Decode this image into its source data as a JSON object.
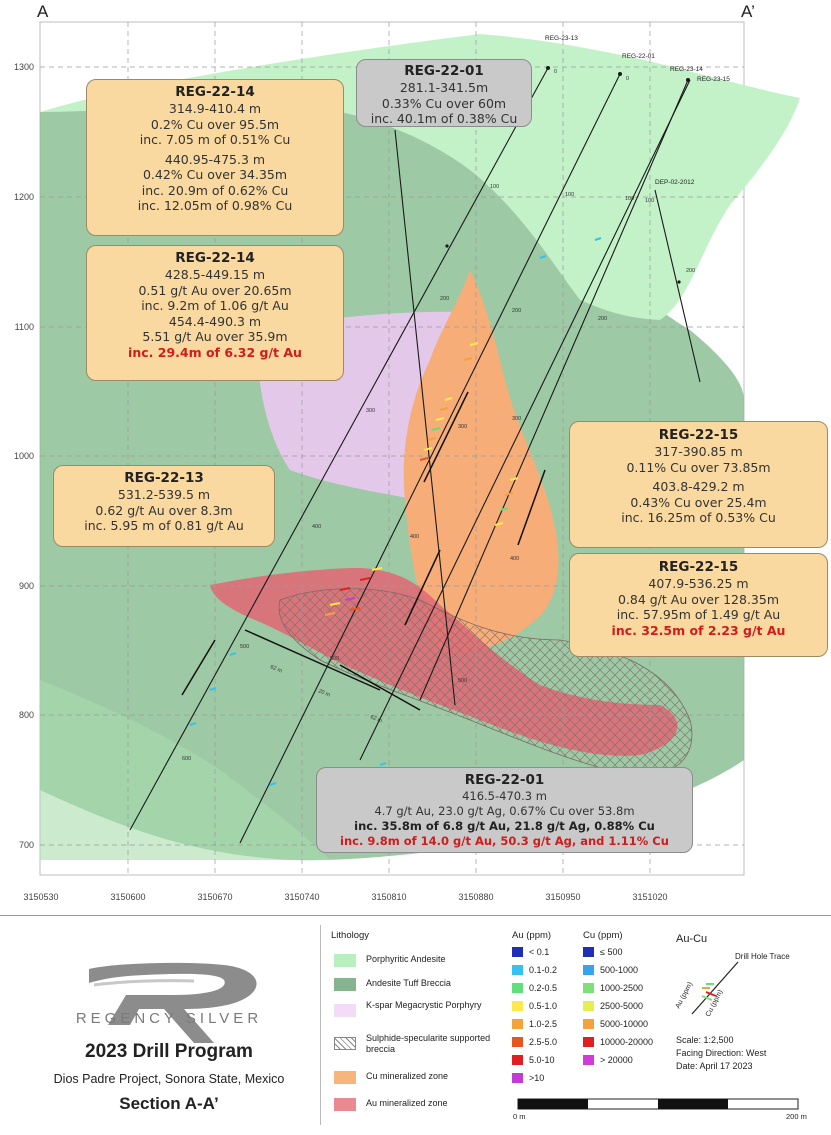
{
  "section": {
    "left_label": "A",
    "right_label": "A’"
  },
  "y_axis": {
    "ticks": [
      "1300",
      "1200",
      "1100",
      "1000",
      "900",
      "800",
      "700"
    ]
  },
  "x_axis": {
    "ticks": [
      "3150530",
      "3150600",
      "3150670",
      "3150740",
      "3150810",
      "3150880",
      "3150950",
      "3151020"
    ]
  },
  "drill_holes": {
    "top_labels": [
      "REG-23-13",
      "REG-22-01",
      "REG-23-14",
      "REG-23-15"
    ],
    "dep_label": "DEP-02-2012",
    "depth_marks": [
      "100",
      "100",
      "100",
      "100",
      "200",
      "200",
      "200",
      "200",
      "300",
      "300",
      "300",
      "400",
      "400",
      "400",
      "500",
      "500",
      "500",
      "600",
      "0",
      "0"
    ],
    "interval_marks": [
      "62 m",
      "20 m",
      "62 m"
    ]
  },
  "callouts": {
    "reg2214_cu": {
      "title": "REG-22-14",
      "lines": [
        "314.9-410.4 m",
        "0.2% Cu over 95.5m",
        "inc. 7.05 m of 0.51% Cu",
        "440.95-475.3 m",
        "0.42% Cu over 34.35m",
        "inc. 20.9m of 0.62% Cu",
        "inc. 12.05m of 0.98% Cu"
      ]
    },
    "reg2201_cu": {
      "title": "REG-22-01",
      "lines": [
        "281.1-341.5m",
        "0.33% Cu over 60m",
        "inc. 40.1m of 0.38% Cu"
      ]
    },
    "reg2214_au": {
      "title": "REG-22-14",
      "lines": [
        "428.5-449.15 m",
        "0.51 g/t Au over 20.65m",
        "inc. 9.2m of 1.06 g/t Au",
        "454.4-490.3 m",
        "5.51 g/t Au over 35.9m"
      ],
      "highlight": "inc. 29.4m of 6.32 g/t Au"
    },
    "reg2213_au": {
      "title": "REG-22-13",
      "lines": [
        "531.2-539.5 m",
        "0.62 g/t Au over 8.3m",
        "inc. 5.95 m of 0.81 g/t Au"
      ]
    },
    "reg2215_cu": {
      "title": "REG-22-15",
      "lines": [
        "317-390.85 m",
        "0.11% Cu over 73.85m",
        "403.8-429.2 m",
        "0.43% Cu over 25.4m",
        "inc. 16.25m of 0.53% Cu"
      ]
    },
    "reg2215_au": {
      "title": "REG-22-15",
      "lines": [
        "407.9-536.25 m",
        "0.84 g/t Au over 128.35m",
        "inc. 57.95m of 1.49 g/t Au"
      ],
      "highlight": "inc. 32.5m of 2.23 g/t Au"
    },
    "reg2201_au": {
      "title": "REG-22-01",
      "lines": [
        "416.5-470.3 m",
        "4.7 g/t Au, 23.0 g/t Ag, 0.67% Cu over 53.8m"
      ],
      "bold_line": "inc. 35.8m of 6.8 g/t Au, 21.8 g/t Ag, 0.88% Cu",
      "highlight": "inc. 9.8m of 14.0 g/t Au, 50.3 g/t Ag, and 1.11% Cu"
    }
  },
  "legend": {
    "company": "REGENCY SILVER",
    "program_title": "2023 Drill Program",
    "project": "Dios Padre Project, Sonora State, Mexico",
    "section_title": "Section A-A’",
    "lithology": {
      "heading": "Lithology",
      "items": [
        {
          "label": "Porphyritic Andesite",
          "color": "#b9efbf"
        },
        {
          "label": "Andesite Tuff Breccia",
          "color": "#86b48e"
        },
        {
          "label": "K-spar Megacrystic Porphyry",
          "color": "#f3dcf6"
        },
        {
          "label": "Sulphide-specularite supported breccia",
          "color": "#ffffff"
        },
        {
          "label": "Cu mineralized zone",
          "color": "#f7b57c"
        },
        {
          "label": "Au mineralized zone",
          "color": "#e98a91"
        }
      ]
    },
    "au_grades": {
      "heading": "Au (ppm)",
      "items": [
        {
          "label": "< 0.1",
          "color": "#1f2fb5"
        },
        {
          "label": "0.1-0.2",
          "color": "#34c3f0"
        },
        {
          "label": "0.2-0.5",
          "color": "#5fe07a"
        },
        {
          "label": "0.5-1.0",
          "color": "#ffe84a"
        },
        {
          "label": "1.0-2.5",
          "color": "#f3a33a"
        },
        {
          "label": "2.5-5.0",
          "color": "#e8551f"
        },
        {
          "label": "5.0-10",
          "color": "#e02020"
        },
        {
          "label": ">10",
          "color": "#c33bd6"
        }
      ]
    },
    "cu_grades": {
      "heading": "Cu (ppm)",
      "items": [
        {
          "label": "≤ 500",
          "color": "#1f2fb5"
        },
        {
          "label": "500-1000",
          "color": "#34a3f0"
        },
        {
          "label": "1000-2500",
          "color": "#7fe07a"
        },
        {
          "label": "2500-5000",
          "color": "#e4f050"
        },
        {
          "label": "5000-10000",
          "color": "#f3a33a"
        },
        {
          "label": "10000-20000",
          "color": "#e02020"
        },
        {
          "label": "> 20000",
          "color": "#d13bd6"
        }
      ]
    },
    "au_cu_key": {
      "heading": "Au-Cu",
      "trace_label": "Drill Hole Trace",
      "au_label": "Au (ppm)",
      "cu_label": "Cu (ppm)"
    },
    "scale": "Scale: 1:2,500",
    "facing": "Facing Direction: West",
    "date": "Date: April 17 2023",
    "scale_bar": {
      "start": "0 m",
      "end": "200 m"
    }
  }
}
